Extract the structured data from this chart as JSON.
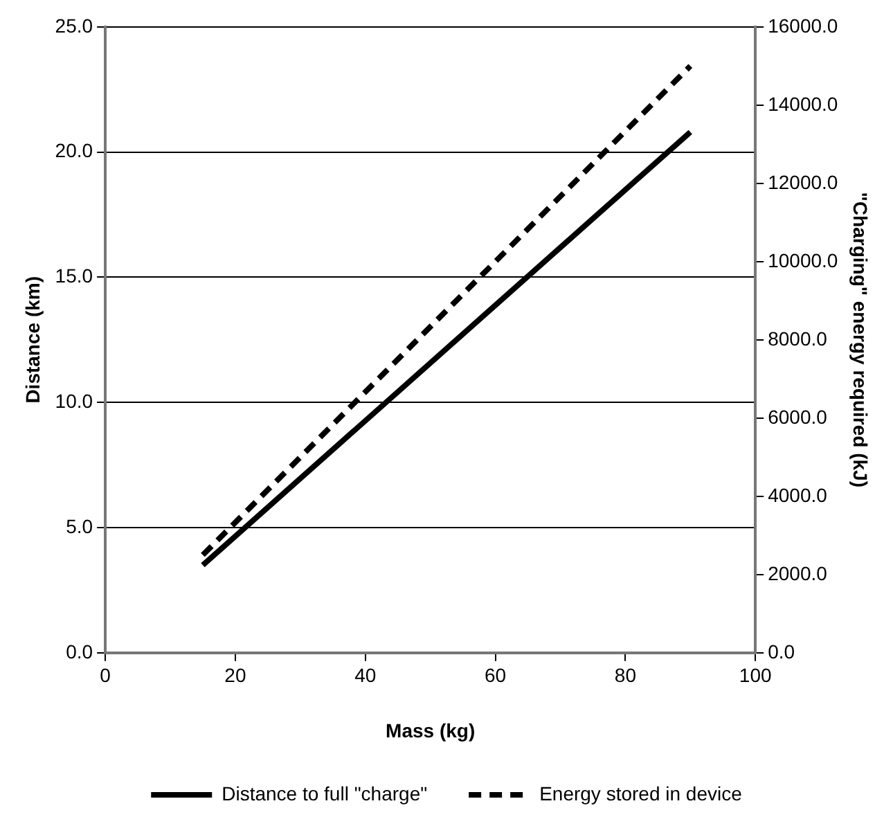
{
  "chart_data": {
    "type": "line",
    "xlabel": "Mass (kg)",
    "ylabel": "Distance (km)",
    "y2label": "\"Charging\" energy required (kJ)",
    "x": [
      15,
      90
    ],
    "series": [
      {
        "name": "Distance to full \"charge\"",
        "color": "#000000",
        "values": [
          3.5,
          20.8
        ],
        "line_style": "solid"
      },
      {
        "name": "Energy stored in device",
        "color": "#000000",
        "values": [
          2500,
          15000
        ],
        "axis": "y2",
        "line_style": "dashed"
      }
    ],
    "xlim": [
      0,
      100
    ],
    "xticks": [
      0,
      20,
      40,
      60,
      80,
      100
    ],
    "ylim": [
      0,
      25
    ],
    "yticks": [
      {
        "value": 0,
        "label": "0.0"
      },
      {
        "value": 5,
        "label": "5.0"
      },
      {
        "value": 10,
        "label": "10.0"
      },
      {
        "value": 15,
        "label": "15.0"
      },
      {
        "value": 20,
        "label": "20.0"
      },
      {
        "value": 25,
        "label": "25.0"
      }
    ],
    "y2lim": [
      0,
      16000
    ],
    "y2ticks": [
      {
        "value": 0,
        "label": "0.0"
      },
      {
        "value": 2000,
        "label": "2000.0"
      },
      {
        "value": 4000,
        "label": "4000.0"
      },
      {
        "value": 6000,
        "label": "6000.0"
      },
      {
        "value": 8000,
        "label": "8000.0"
      },
      {
        "value": 10000,
        "label": "10000.0"
      },
      {
        "value": 12000,
        "label": "12000.0"
      },
      {
        "value": 14000,
        "label": "14000.0"
      },
      {
        "value": 16000,
        "label": "16000.0"
      }
    ],
    "grid": "y",
    "legend": "bottom",
    "marker": "none"
  }
}
